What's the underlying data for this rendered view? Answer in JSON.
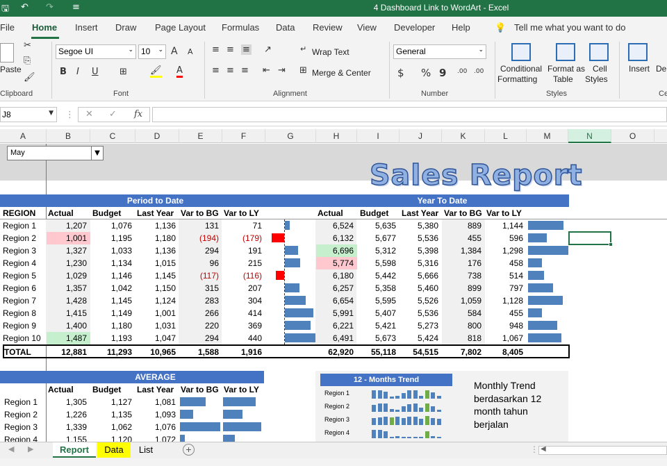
{
  "window": {
    "title": "4 Dashboard Link to WordArt  -  Excel"
  },
  "ribbon_tabs": [
    "File",
    "Home",
    "Insert",
    "Draw",
    "Page Layout",
    "Formulas",
    "Data",
    "Review",
    "View",
    "Developer",
    "Help"
  ],
  "tell_me": "Tell me what you want to do",
  "clipboard": {
    "paste": "Paste",
    "label": "Clipboard"
  },
  "font": {
    "name": "Segoe UI",
    "size": "10",
    "label": "Font",
    "grow": "A",
    "shrink": "A",
    "bold": "B",
    "italic": "I",
    "underline": "U"
  },
  "alignment": {
    "wrap": "Wrap Text",
    "merge": "Merge & Center",
    "label": "Alignment"
  },
  "number": {
    "format": "General",
    "currency": "$",
    "percent": "%",
    "comma": "9",
    "inc": ".00",
    "dec": ".00",
    "label": "Number"
  },
  "styles": {
    "cond1": "Conditional",
    "cond2": "Formatting",
    "fmt1": "Format as",
    "fmt2": "Table",
    "cell1": "Cell",
    "cell2": "Styles",
    "label": "Styles"
  },
  "cells": {
    "insert": "Insert",
    "delete": "Dele",
    "label": "Ce"
  },
  "name_box": "J8",
  "fx": "fx",
  "columns": [
    "A",
    "B",
    "C",
    "D",
    "E",
    "F",
    "G",
    "H",
    "I",
    "J",
    "K",
    "L",
    "M",
    "N",
    "O"
  ],
  "month_select": "May",
  "report_title": "Sales Report",
  "ptd_header": "Period to Date",
  "ytd_header": "Year To Date",
  "col_headers": {
    "region": "REGION",
    "actual": "Actual",
    "budget": "Budget",
    "lastyear": "Last Year",
    "varbg": "Var to BG",
    "varly": "Var to LY"
  },
  "ptd_rows": [
    [
      "Region 1",
      "1,207",
      "1,076",
      "1,136",
      "131",
      "71"
    ],
    [
      "Region 2",
      "1,001",
      "1,195",
      "1,180",
      "(194)",
      "(179)"
    ],
    [
      "Region 3",
      "1,327",
      "1,033",
      "1,136",
      "294",
      "191"
    ],
    [
      "Region 4",
      "1,230",
      "1,134",
      "1,015",
      "96",
      "215"
    ],
    [
      "Region 5",
      "1,029",
      "1,146",
      "1,145",
      "(117)",
      "(116)"
    ],
    [
      "Region 6",
      "1,357",
      "1,042",
      "1,150",
      "315",
      "207"
    ],
    [
      "Region 7",
      "1,428",
      "1,145",
      "1,124",
      "283",
      "304"
    ],
    [
      "Region 8",
      "1,415",
      "1,149",
      "1,001",
      "266",
      "414"
    ],
    [
      "Region 9",
      "1,400",
      "1,180",
      "1,031",
      "220",
      "369"
    ],
    [
      "Region 10",
      "1,487",
      "1,193",
      "1,047",
      "294",
      "440"
    ]
  ],
  "ytd_rows": [
    [
      "6,524",
      "5,635",
      "5,380",
      "889",
      "1,144"
    ],
    [
      "6,132",
      "5,677",
      "5,536",
      "455",
      "596"
    ],
    [
      "6,696",
      "5,312",
      "5,398",
      "1,384",
      "1,298"
    ],
    [
      "5,774",
      "5,598",
      "5,316",
      "176",
      "458"
    ],
    [
      "6,180",
      "5,442",
      "5,666",
      "738",
      "514"
    ],
    [
      "6,257",
      "5,358",
      "5,460",
      "899",
      "797"
    ],
    [
      "6,654",
      "5,595",
      "5,526",
      "1,059",
      "1,128"
    ],
    [
      "5,991",
      "5,407",
      "5,536",
      "584",
      "455"
    ],
    [
      "6,221",
      "5,421",
      "5,273",
      "800",
      "948"
    ],
    [
      "6,491",
      "5,673",
      "5,424",
      "818",
      "1,067"
    ]
  ],
  "total_row": [
    "TOTAL",
    "12,881",
    "11,293",
    "10,965",
    "1,588",
    "1,916",
    "62,920",
    "55,118",
    "54,515",
    "7,802",
    "8,405"
  ],
  "ptd_bar_values": [
    71,
    -179,
    191,
    215,
    -116,
    207,
    304,
    414,
    369,
    440
  ],
  "ytd_bar_values": [
    1144,
    596,
    1298,
    458,
    514,
    797,
    1128,
    455,
    948,
    1067
  ],
  "highlight_colors": {
    "low": "#ffc7ce",
    "high": "#c6efce",
    "bar": "#4f81bd",
    "neg": "#ff0000"
  },
  "average_header": "AVERAGE",
  "avg_rows": [
    [
      "Region 1",
      "1,305",
      "1,127",
      "1,081"
    ],
    [
      "Region 2",
      "1,226",
      "1,135",
      "1,093"
    ],
    [
      "Region 3",
      "1,339",
      "1,062",
      "1,076"
    ],
    [
      "Region 4",
      "1,155",
      "1,120",
      "1,072"
    ]
  ],
  "avg_bg_bars": [
    178,
    91,
    277,
    35
  ],
  "avg_ly_bars": [
    224,
    133,
    263,
    83
  ],
  "trend_header": "12 - Months Trend",
  "trend_regions": [
    "Region 1",
    "Region 2",
    "Region 3",
    "Region 4"
  ],
  "trend_note": [
    "Monthly Trend",
    "berdasarkan 12",
    "month tahun",
    "berjalan"
  ],
  "sheets": [
    "Report",
    "Data",
    "List"
  ]
}
